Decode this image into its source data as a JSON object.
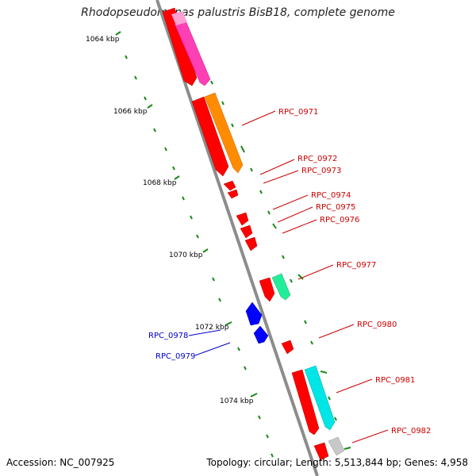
{
  "title": "Rhodopseudomonas palustris BisB18, complete genome",
  "footer": {
    "accession": "Accession: NC_007925",
    "stats": "Topology: circular; Length: 5,513,844 bp; Genes: 4,958"
  },
  "scale_labels": [
    "1064 kbp",
    "1066 kbp",
    "1068 kbp",
    "1070 kbp",
    "1072 kbp",
    "1074 kbp"
  ],
  "gene_labels": [
    {
      "text": "RPC_0971",
      "strand": "forward"
    },
    {
      "text": "RPC_0972",
      "strand": "forward"
    },
    {
      "text": "RPC_0973",
      "strand": "forward"
    },
    {
      "text": "RPC_0974",
      "strand": "forward"
    },
    {
      "text": "RPC_0975",
      "strand": "forward"
    },
    {
      "text": "RPC_0976",
      "strand": "forward"
    },
    {
      "text": "RPC_0977",
      "strand": "forward"
    },
    {
      "text": "RPC_0978",
      "strand": "reverse"
    },
    {
      "text": "RPC_0979",
      "strand": "reverse"
    },
    {
      "text": "RPC_0980",
      "strand": "forward"
    },
    {
      "text": "RPC_0981",
      "strand": "forward"
    },
    {
      "text": "RPC_0982",
      "strand": "forward"
    }
  ],
  "colors": {
    "backbone": "#8c8c8c",
    "forward_gene": "#ff0000",
    "reverse_gene": "#0000ff",
    "label_forward": "#cc0000",
    "label_reverse": "#0000cc",
    "tick": "#1a8a1a",
    "feature_magenta": "#ff3fb4",
    "feature_orange": "#ff8c00",
    "feature_green": "#22ee99",
    "feature_cyan": "#00e6e6",
    "feature_grey": "#c8c8c8"
  }
}
